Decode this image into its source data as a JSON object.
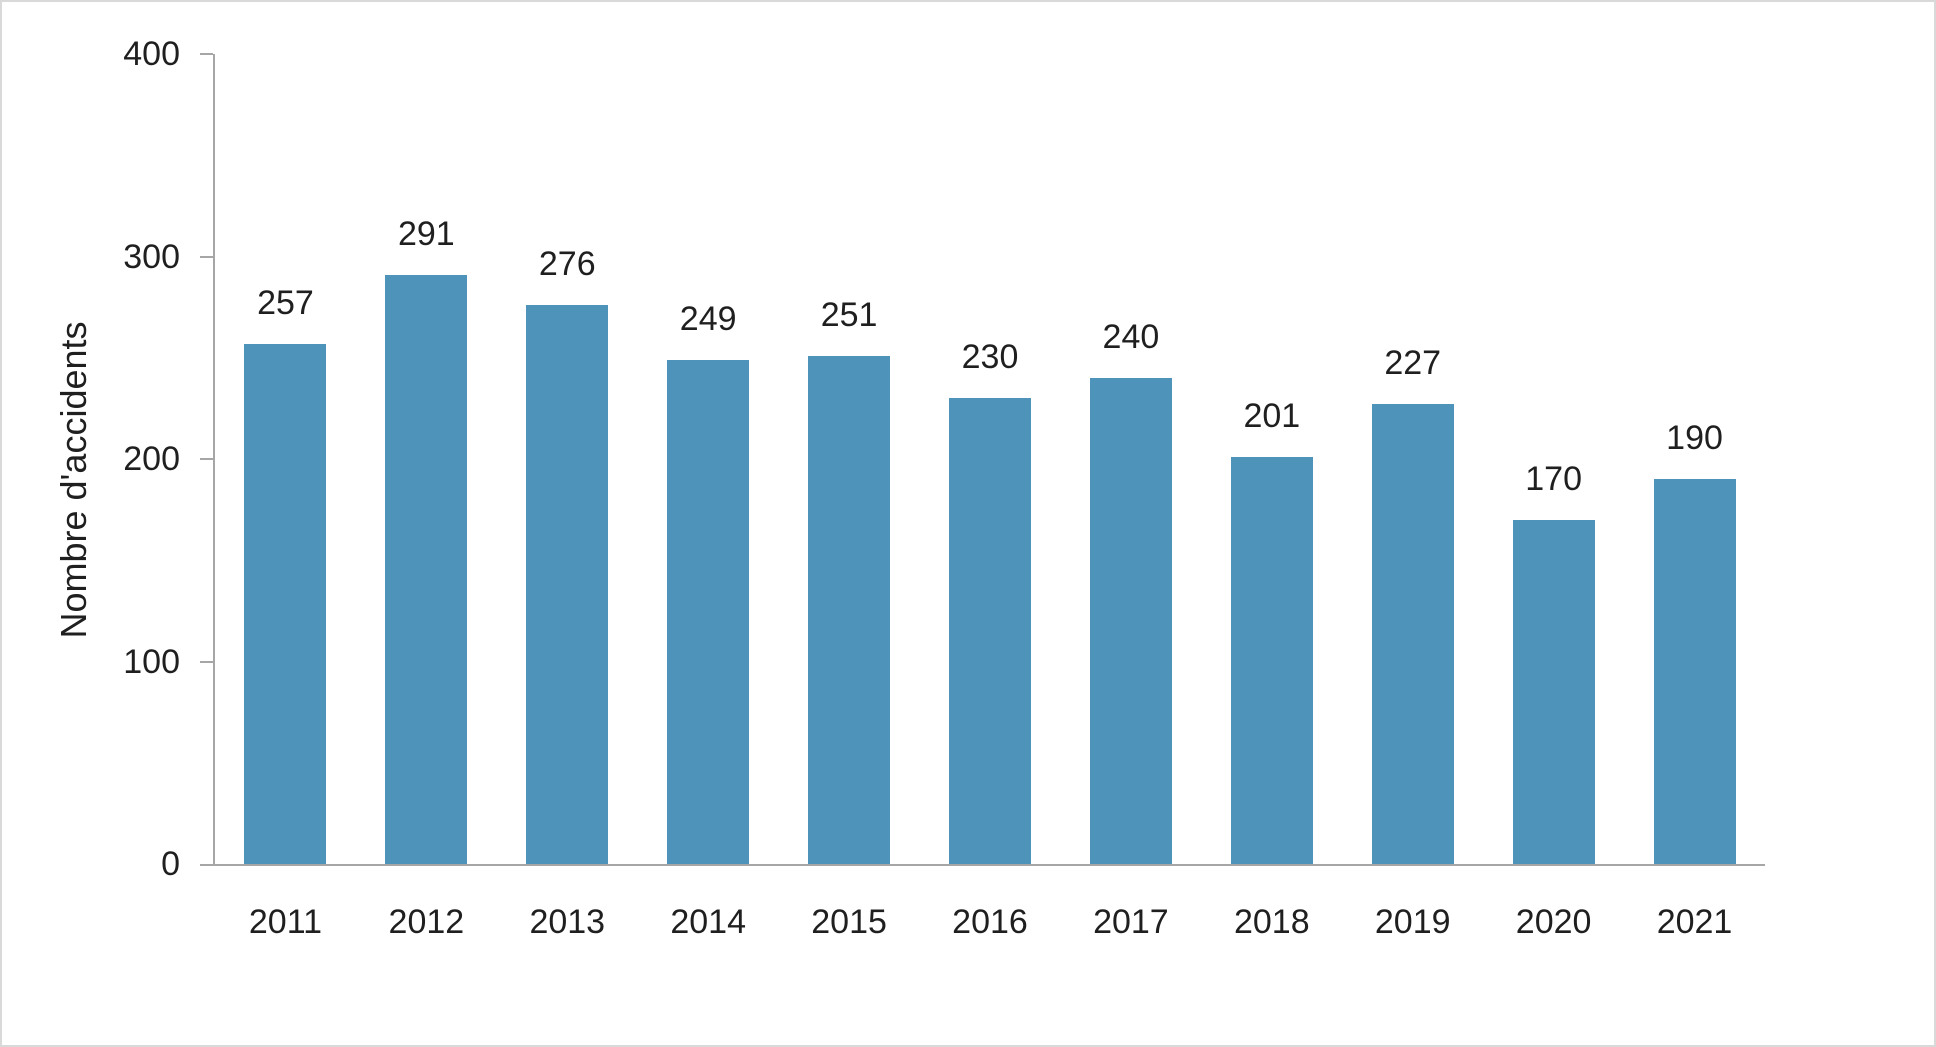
{
  "chart_data": {
    "type": "bar",
    "title": "",
    "ylabel": "Nombre d'accidents",
    "xlabel": "",
    "categories": [
      "2011",
      "2012",
      "2013",
      "2014",
      "2015",
      "2016",
      "2017",
      "2018",
      "2019",
      "2020",
      "2021"
    ],
    "values": [
      257,
      291,
      276,
      249,
      251,
      230,
      240,
      201,
      227,
      170,
      190
    ],
    "ylim": [
      0,
      400
    ],
    "yticks": [
      0,
      100,
      200,
      300,
      400
    ],
    "grid": false,
    "legend": "none",
    "data_labels": "outside-end",
    "colors": {
      "bar": "#4e93ba",
      "axis": "#a6a6a6",
      "text": "#1f1f1f",
      "frame_border": "#d9d9d9",
      "background": "#ffffff"
    }
  }
}
